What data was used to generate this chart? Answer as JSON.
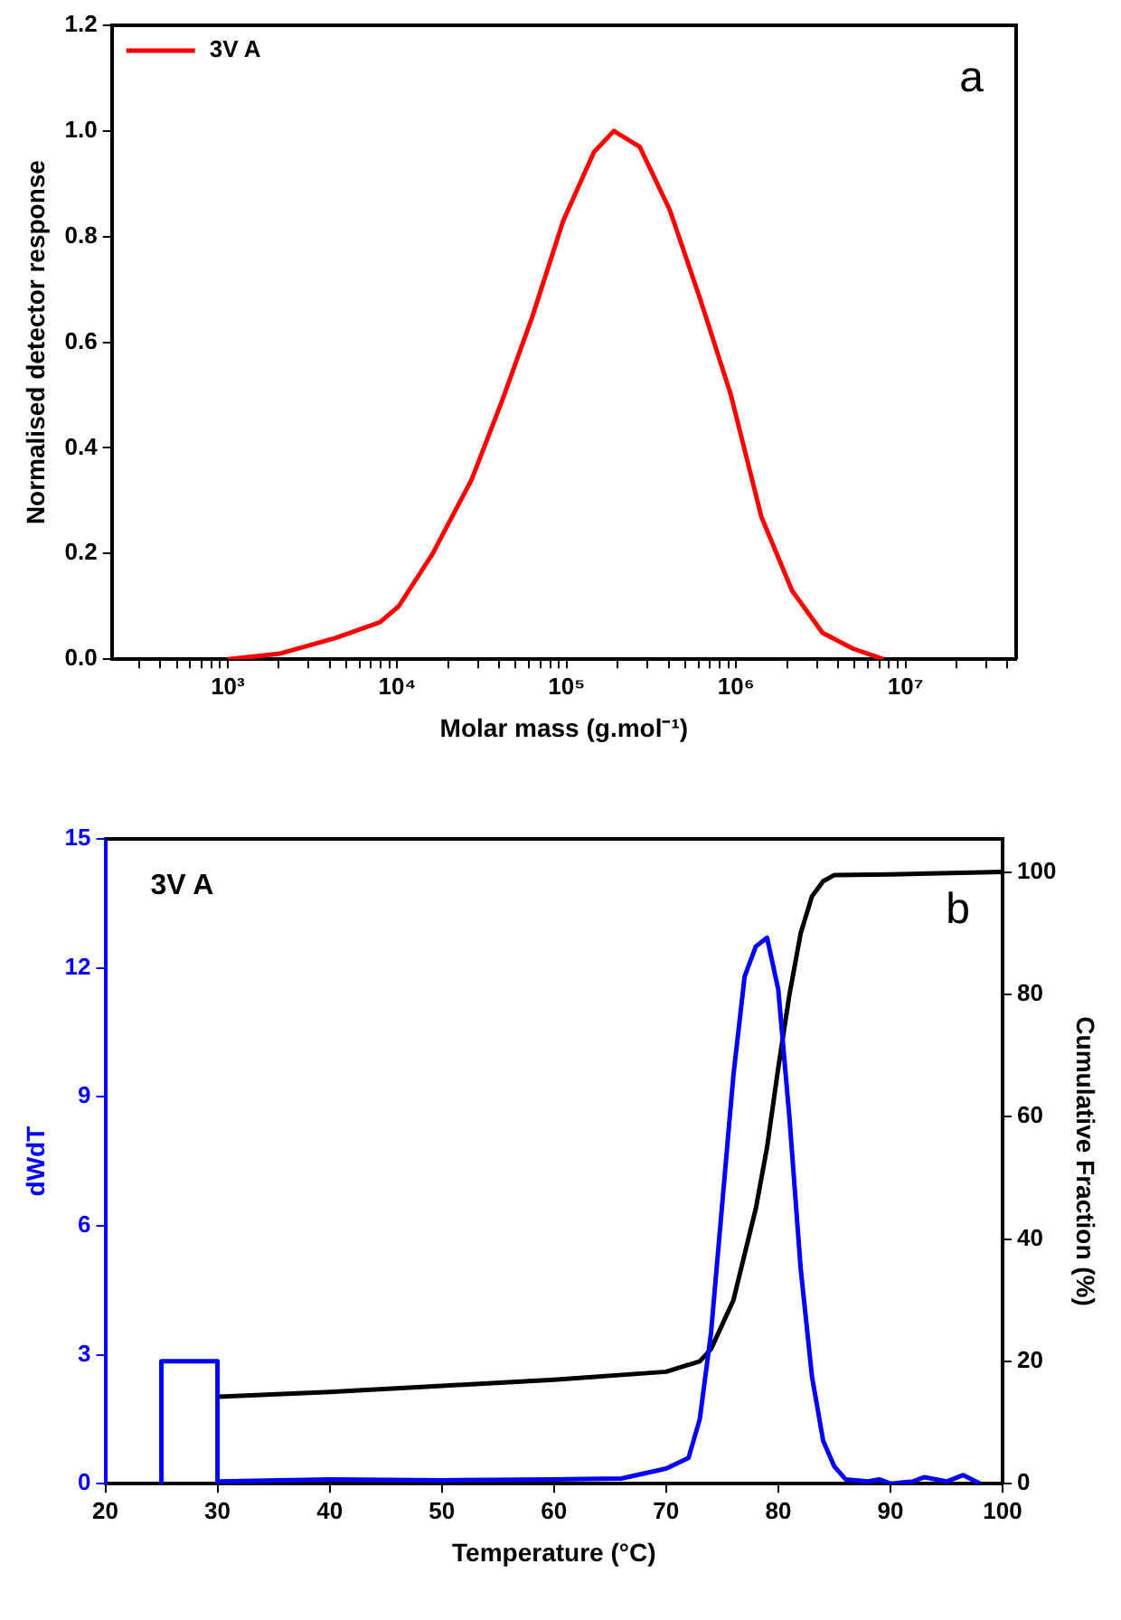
{
  "chart_data": [
    {
      "type": "line",
      "xlabel": "Molar mass (g.mol⁻¹)",
      "ylabel": "Normalised detector response",
      "log": "x",
      "legend": "top left",
      "grid": false,
      "annotations": [
        "a"
      ],
      "xlim": [
        207,
        45000000
      ],
      "ylim": [
        0,
        1.2
      ],
      "yticks": [
        {
          "value": 0,
          "label": "0.0"
        },
        0.2,
        0.4,
        0.6,
        0.8,
        {
          "value": 1,
          "label": "1.0"
        },
        1.2
      ],
      "xticks": [
        {
          "value": 300,
          "label": null
        },
        {
          "value": 400,
          "label": null
        },
        {
          "value": 500,
          "label": null
        },
        {
          "value": 600,
          "label": null
        },
        {
          "value": 700,
          "label": null
        },
        {
          "value": 800,
          "label": null
        },
        {
          "value": 900,
          "label": null
        },
        {
          "value": 1000,
          "label": "10³"
        },
        {
          "value": 2000,
          "label": null
        },
        {
          "value": 3000,
          "label": null
        },
        {
          "value": 4000,
          "label": null
        },
        {
          "value": 5000,
          "label": null
        },
        {
          "value": 6000,
          "label": null
        },
        {
          "value": 7000,
          "label": null
        },
        {
          "value": 8000,
          "label": null
        },
        {
          "value": 9000,
          "label": null
        },
        {
          "value": 10000,
          "label": "10⁴"
        },
        {
          "value": 20000,
          "label": null
        },
        {
          "value": 30000,
          "label": null
        },
        {
          "value": 40000,
          "label": null
        },
        {
          "value": 50000,
          "label": null
        },
        {
          "value": 60000,
          "label": null
        },
        {
          "value": 70000,
          "label": null
        },
        {
          "value": 80000,
          "label": null
        },
        {
          "value": 90000,
          "label": null
        },
        {
          "value": 100000,
          "label": "10⁵"
        },
        {
          "value": 200000,
          "label": null
        },
        {
          "value": 300000,
          "label": null
        },
        {
          "value": 400000,
          "label": null
        },
        {
          "value": 500000,
          "label": null
        },
        {
          "value": 600000,
          "label": null
        },
        {
          "value": 700000,
          "label": null
        },
        {
          "value": 800000,
          "label": null
        },
        {
          "value": 900000,
          "label": null
        },
        {
          "value": 1000000,
          "label": "10⁶"
        },
        {
          "value": 2000000,
          "label": null
        },
        {
          "value": 3000000,
          "label": null
        },
        {
          "value": 4000000,
          "label": null
        },
        {
          "value": 5000000,
          "label": null
        },
        {
          "value": 6000000,
          "label": null
        },
        {
          "value": 7000000,
          "label": null
        },
        {
          "value": 8000000,
          "label": null
        },
        {
          "value": 9000000,
          "label": null
        },
        {
          "value": 10000000,
          "label": "10⁷"
        },
        {
          "value": 20000000,
          "label": null
        },
        {
          "value": 30000000,
          "label": null
        },
        {
          "value": 40000000,
          "label": null
        }
      ],
      "series": [
        {
          "name": "3V A",
          "color": "#ff0000",
          "x": [
            1000,
            2000,
            4300,
            7900,
            10200,
            16200,
            27500,
            41700,
            63000,
            95500,
            145000,
            190000,
            270000,
            407000,
            617000,
            933000,
            1410000,
            2140000,
            3240000,
            4900000,
            7400000
          ],
          "values": [
            0,
            0.01,
            0.04,
            0.07,
            0.1,
            0.2,
            0.34,
            0.49,
            0.65,
            0.83,
            0.96,
            1.0,
            0.97,
            0.85,
            0.68,
            0.5,
            0.27,
            0.13,
            0.05,
            0.02,
            0
          ]
        }
      ]
    },
    {
      "type": "line",
      "xlabel": "Temperature (°C)",
      "ylabel": "dWdT",
      "y2label": "Cumulative Fraction (%)",
      "grid": false,
      "annotations": [
        "3V A",
        "b"
      ],
      "xlim": [
        20,
        100
      ],
      "xticks": [
        20,
        30,
        40,
        50,
        60,
        70,
        80,
        90,
        100
      ],
      "ylim": [
        0,
        15
      ],
      "yticks": [
        0,
        3,
        6,
        9,
        12,
        15
      ],
      "y2lim": [
        0,
        105.4
      ],
      "y2ticks": [
        0,
        20,
        40,
        60,
        80,
        100
      ],
      "series": [
        {
          "color": "#0000ff",
          "axis": "y",
          "x": [
            25,
            25,
            30,
            30,
            40,
            50,
            60,
            66,
            70,
            72,
            73,
            74,
            75,
            76,
            77,
            78,
            79,
            80,
            81,
            82,
            83,
            84,
            85,
            86,
            88,
            89,
            90,
            92,
            93,
            95,
            96.5,
            98
          ],
          "values": [
            0,
            2.85,
            2.85,
            0.05,
            0.1,
            0.08,
            0.1,
            0.12,
            0.35,
            0.6,
            1.5,
            3.5,
            6.5,
            9.5,
            11.8,
            12.5,
            12.7,
            11.5,
            8.5,
            5,
            2.5,
            1,
            0.4,
            0.1,
            0.05,
            0.1,
            0,
            0.05,
            0.15,
            0.05,
            0.2,
            0
          ]
        },
        {
          "color": "#000000",
          "axis": "y2",
          "x": [
            30,
            40,
            50,
            60,
            70,
            73,
            74,
            76,
            78,
            79,
            80,
            81,
            82,
            83,
            84,
            85,
            90,
            100
          ],
          "values": [
            14.2,
            15,
            16,
            17,
            18.3,
            20,
            22,
            30,
            45,
            55,
            68,
            80,
            90,
            96,
            98.5,
            99.5,
            99.6,
            100
          ]
        }
      ]
    }
  ]
}
